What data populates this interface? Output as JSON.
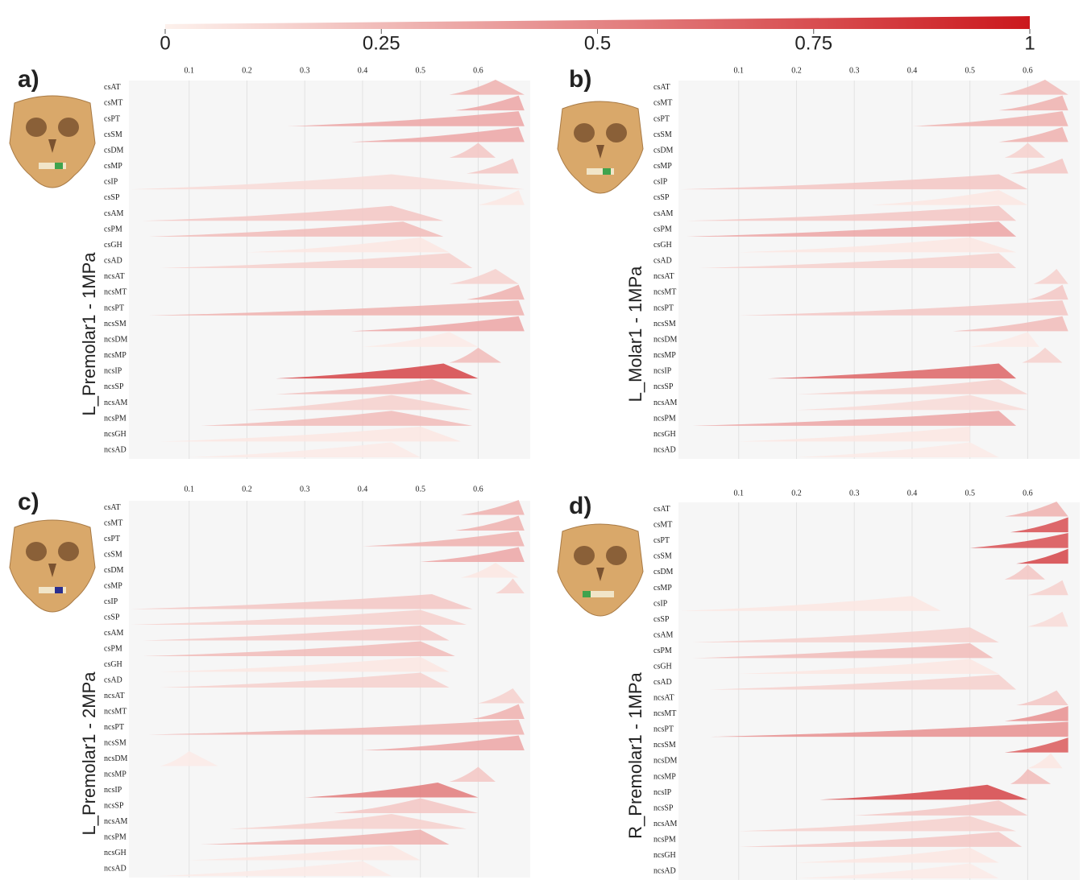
{
  "chart_data": [
    {
      "type": "colorbar",
      "xlim": [
        0,
        1
      ],
      "xticks": [
        0,
        0.25,
        0.5,
        0.75,
        1
      ],
      "colors": [
        "#fdf1ec",
        "#cb181d"
      ]
    },
    {
      "type": "ridgeline",
      "label": "a)",
      "ylabel": "L_Premolar1 - 1MPa",
      "xlim": [
        0,
        0.69
      ],
      "xticks": [
        0.1,
        0.2,
        0.3,
        0.4,
        0.5,
        0.6
      ],
      "marker_color": "#3fa34d",
      "categories": [
        "csAT",
        "csMT",
        "csPT",
        "csSM",
        "csDM",
        "csMP",
        "csIP",
        "csSP",
        "csAM",
        "csPM",
        "csGH",
        "csAD",
        "ncsAT",
        "ncsMT",
        "ncsPT",
        "ncsSM",
        "ncsDM",
        "ncsMP",
        "ncsIP",
        "ncsSP",
        "ncsAM",
        "ncsPM",
        "ncsGH",
        "ncsAD"
      ],
      "start": [
        0.55,
        0.56,
        0.27,
        0.38,
        0.55,
        0.58,
        0.0,
        0.6,
        0.02,
        0.03,
        0.2,
        0.05,
        0.55,
        0.58,
        0.03,
        0.38,
        0.4,
        0.55,
        0.25,
        0.25,
        0.2,
        0.12,
        0.05,
        0.1
      ],
      "peak": [
        0.63,
        0.67,
        0.67,
        0.67,
        0.6,
        0.66,
        0.45,
        0.67,
        0.45,
        0.47,
        0.5,
        0.55,
        0.63,
        0.67,
        0.67,
        0.67,
        0.55,
        0.6,
        0.54,
        0.52,
        0.45,
        0.45,
        0.5,
        0.45
      ],
      "end": [
        0.68,
        0.68,
        0.68,
        0.68,
        0.63,
        0.67,
        0.68,
        0.68,
        0.54,
        0.54,
        0.55,
        0.59,
        0.67,
        0.68,
        0.68,
        0.68,
        0.6,
        0.64,
        0.6,
        0.59,
        0.59,
        0.59,
        0.57,
        0.5
      ],
      "intensity": [
        0.3,
        0.35,
        0.35,
        0.35,
        0.2,
        0.2,
        0.1,
        0.05,
        0.2,
        0.25,
        0.05,
        0.15,
        0.15,
        0.3,
        0.3,
        0.35,
        0.03,
        0.25,
        0.8,
        0.25,
        0.15,
        0.25,
        0.05,
        0.03
      ]
    },
    {
      "type": "ridgeline",
      "label": "b)",
      "ylabel": "L_Molar1 - 1MPa",
      "xlim": [
        0,
        0.69
      ],
      "xticks": [
        0.1,
        0.2,
        0.3,
        0.4,
        0.5,
        0.6
      ],
      "marker_color": "#3fa34d",
      "categories": [
        "csAT",
        "csMT",
        "csPT",
        "csSM",
        "csDM",
        "csMP",
        "csIP",
        "csSP",
        "csAM",
        "csPM",
        "csGH",
        "csAD",
        "ncsAT",
        "ncsMT",
        "ncsPT",
        "ncsSM",
        "ncsDM",
        "ncsMP",
        "ncsIP",
        "ncsSP",
        "ncsAM",
        "ncsPM",
        "ncsGH",
        "ncsAD"
      ],
      "start": [
        0.55,
        0.55,
        0.4,
        0.55,
        0.56,
        0.57,
        0.0,
        0.33,
        0.01,
        0.01,
        0.1,
        0.03,
        0.61,
        0.6,
        0.1,
        0.47,
        0.5,
        0.59,
        0.15,
        0.2,
        0.2,
        0.02,
        0.1,
        0.2
      ],
      "peak": [
        0.63,
        0.66,
        0.66,
        0.66,
        0.6,
        0.66,
        0.55,
        0.55,
        0.55,
        0.55,
        0.5,
        0.55,
        0.65,
        0.66,
        0.66,
        0.66,
        0.6,
        0.63,
        0.55,
        0.55,
        0.5,
        0.55,
        0.5,
        0.5
      ],
      "end": [
        0.67,
        0.67,
        0.67,
        0.67,
        0.63,
        0.67,
        0.6,
        0.6,
        0.58,
        0.58,
        0.58,
        0.58,
        0.67,
        0.67,
        0.67,
        0.67,
        0.62,
        0.66,
        0.58,
        0.6,
        0.6,
        0.58,
        0.5,
        0.55
      ],
      "intensity": [
        0.25,
        0.3,
        0.3,
        0.3,
        0.15,
        0.2,
        0.2,
        0.05,
        0.2,
        0.35,
        0.05,
        0.15,
        0.15,
        0.2,
        0.2,
        0.25,
        0.03,
        0.15,
        0.65,
        0.15,
        0.1,
        0.35,
        0.05,
        0.03
      ]
    },
    {
      "type": "ridgeline",
      "label": "c)",
      "ylabel": "L_Premolar1 - 2MPa",
      "xlim": [
        0,
        0.69
      ],
      "xticks": [
        0.1,
        0.2,
        0.3,
        0.4,
        0.5,
        0.6
      ],
      "marker_color": "#2b2f8f",
      "categories": [
        "csAT",
        "csMT",
        "csPT",
        "csSM",
        "csDM",
        "csMP",
        "csIP",
        "csSP",
        "csAM",
        "csPM",
        "csGH",
        "csAD",
        "ncsAT",
        "ncsMT",
        "ncsPT",
        "ncsSM",
        "ncsDM",
        "ncsMP",
        "ncsIP",
        "ncsSP",
        "ncsAM",
        "ncsPM",
        "ncsGH",
        "ncsAD"
      ],
      "start": [
        0.57,
        0.56,
        0.4,
        0.5,
        0.57,
        0.63,
        0.0,
        0.0,
        0.02,
        0.02,
        0.05,
        0.05,
        0.6,
        0.59,
        0.03,
        0.4,
        0.05,
        0.55,
        0.3,
        0.35,
        0.17,
        0.12,
        0.1,
        0.05
      ],
      "peak": [
        0.67,
        0.67,
        0.67,
        0.67,
        0.63,
        0.66,
        0.52,
        0.5,
        0.5,
        0.5,
        0.5,
        0.5,
        0.66,
        0.67,
        0.67,
        0.67,
        0.1,
        0.6,
        0.53,
        0.5,
        0.45,
        0.5,
        0.45,
        0.4
      ],
      "end": [
        0.68,
        0.68,
        0.68,
        0.68,
        0.67,
        0.68,
        0.59,
        0.58,
        0.55,
        0.56,
        0.55,
        0.55,
        0.68,
        0.68,
        0.68,
        0.68,
        0.15,
        0.63,
        0.6,
        0.6,
        0.58,
        0.55,
        0.5,
        0.45
      ],
      "intensity": [
        0.3,
        0.3,
        0.3,
        0.35,
        0.05,
        0.15,
        0.2,
        0.15,
        0.2,
        0.25,
        0.05,
        0.15,
        0.15,
        0.3,
        0.3,
        0.35,
        0.03,
        0.2,
        0.55,
        0.2,
        0.15,
        0.3,
        0.05,
        0.03
      ]
    },
    {
      "type": "ridgeline",
      "label": "d)",
      "ylabel": "R_Premolar1 - 1MPa",
      "xlim": [
        0,
        0.69
      ],
      "xticks": [
        0.1,
        0.2,
        0.3,
        0.4,
        0.5,
        0.6
      ],
      "marker_color": "#3fa34d",
      "categories": [
        "csAT",
        "csMT",
        "csPT",
        "csSM",
        "csDM",
        "csMP",
        "csIP",
        "csSP",
        "csAM",
        "csPM",
        "csGH",
        "csAD",
        "ncsAT",
        "ncsMT",
        "ncsPT",
        "ncsSM",
        "ncsDM",
        "ncsMP",
        "ncsIP",
        "ncsSP",
        "ncsAM",
        "ncsPM",
        "ncsGH",
        "ncsAD"
      ],
      "start": [
        0.56,
        0.57,
        0.5,
        0.58,
        0.56,
        0.6,
        0.0,
        0.6,
        0.02,
        0.02,
        0.1,
        0.05,
        0.58,
        0.56,
        0.05,
        0.56,
        0.6,
        0.57,
        0.24,
        0.3,
        0.1,
        0.1,
        0.2,
        0.2
      ],
      "peak": [
        0.65,
        0.67,
        0.67,
        0.67,
        0.6,
        0.66,
        0.4,
        0.66,
        0.5,
        0.5,
        0.5,
        0.55,
        0.65,
        0.67,
        0.67,
        0.67,
        0.64,
        0.6,
        0.53,
        0.55,
        0.5,
        0.55,
        0.5,
        0.5
      ],
      "end": [
        0.67,
        0.67,
        0.67,
        0.67,
        0.63,
        0.67,
        0.45,
        0.67,
        0.55,
        0.54,
        0.55,
        0.58,
        0.67,
        0.67,
        0.67,
        0.67,
        0.66,
        0.64,
        0.6,
        0.6,
        0.58,
        0.59,
        0.55,
        0.55
      ],
      "intensity": [
        0.3,
        0.75,
        0.75,
        0.8,
        0.2,
        0.15,
        0.05,
        0.1,
        0.15,
        0.25,
        0.05,
        0.15,
        0.2,
        0.45,
        0.45,
        0.7,
        0.05,
        0.25,
        0.8,
        0.2,
        0.15,
        0.2,
        0.05,
        0.03
      ]
    }
  ]
}
